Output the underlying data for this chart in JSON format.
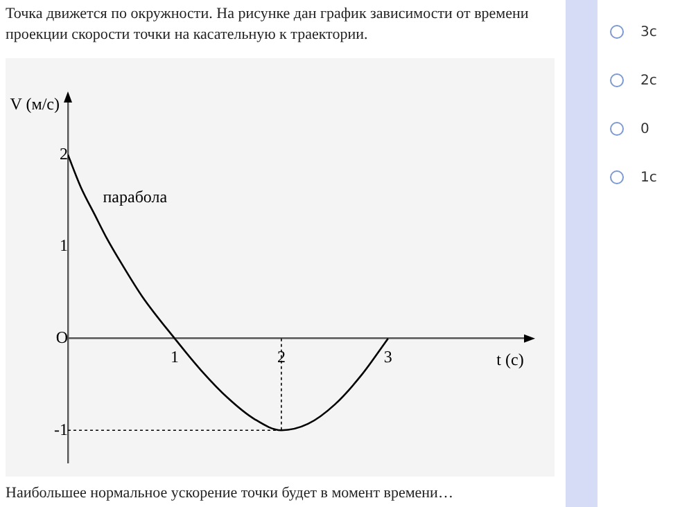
{
  "chart_data": {
    "type": "line",
    "title": "Точка движется по окружности. На рисунке дан график зависимости от времени проекции скорости точки на касательную к траектории.",
    "xlabel": "t (с)",
    "ylabel": "V (м/с)",
    "x": [
      0,
      0.12,
      0.25,
      0.36,
      0.5,
      0.7,
      1,
      1.25,
      1.5,
      1.75,
      2,
      2.25,
      2.5,
      2.75,
      3
    ],
    "series": [
      {
        "color": "#000000",
        "values": [
          2,
          1.65,
          1.35,
          1.1,
          0.82,
          0.45,
          0,
          -0.35,
          -0.65,
          -0.88,
          -1,
          -0.93,
          -0.72,
          -0.4,
          0
        ]
      }
    ],
    "xlim": [
      0,
      4.3
    ],
    "ylim": [
      -1.35,
      2.6
    ],
    "xticks": [
      1,
      2,
      3
    ],
    "yticks": [
      -1,
      {
        "value": 0,
        "label": "O"
      },
      1,
      2
    ],
    "grid": false,
    "legend": false,
    "marker": "none",
    "line_style": "solid",
    "ref_lines": [
      {
        "axis": "y",
        "value": -1,
        "line_style": "dotted"
      },
      {
        "axis": "x",
        "value": 2,
        "line_style": "dotted"
      }
    ],
    "annotations": [
      {
        "text": "парабола",
        "x": 0.25,
        "y": 1.35
      },
      "Наибольшее нормальное ускорение точки будет в момент времени…",
      "3с",
      "2с",
      "0",
      "1с"
    ]
  }
}
